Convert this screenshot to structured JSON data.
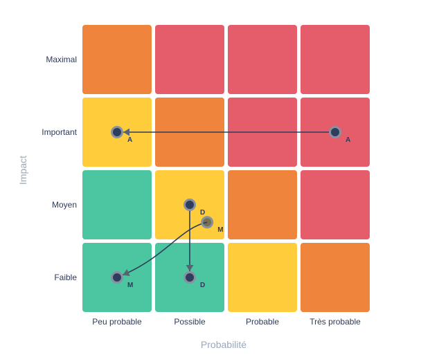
{
  "chart_data": {
    "type": "heatmap",
    "x_categories": [
      "Peu probable",
      "Possible",
      "Probable",
      "Très probable"
    ],
    "y_categories": [
      "Faible",
      "Moyen",
      "Important",
      "Maximal"
    ],
    "xlabel": "Probabilité",
    "ylabel": "Impact",
    "colors": {
      "green": "#4bc6a0",
      "yellow": "#ffcd3c",
      "orange": "#ef843d",
      "red": "#e55d6b",
      "point": "#2e3d5c",
      "point_ring": "#8891a1"
    },
    "cells": [
      [
        "green",
        "green",
        "yellow",
        "orange"
      ],
      [
        "green",
        "yellow",
        "orange",
        "red"
      ],
      [
        "yellow",
        "orange",
        "red",
        "red"
      ],
      [
        "orange",
        "red",
        "red",
        "red"
      ]
    ],
    "movements": [
      {
        "label": "A",
        "from": {
          "x": "Très probable",
          "y": "Important"
        },
        "to": {
          "x": "Peu probable",
          "y": "Important"
        },
        "from_offset": [
          0,
          0
        ],
        "to_offset": [
          0,
          0
        ],
        "curve": "straight"
      },
      {
        "label": "D",
        "from": {
          "x": "Possible",
          "y": "Moyen"
        },
        "to": {
          "x": "Possible",
          "y": "Faible"
        },
        "from_offset": [
          0,
          0
        ],
        "to_offset": [
          0,
          0
        ],
        "curve": "straight"
      },
      {
        "label": "M",
        "from": {
          "x": "Possible",
          "y": "Moyen"
        },
        "to": {
          "x": "Peu probable",
          "y": "Faible"
        },
        "from_offset": [
          0.24,
          -0.24
        ],
        "to_offset": [
          0,
          0
        ],
        "curve": "s-curve"
      }
    ]
  }
}
